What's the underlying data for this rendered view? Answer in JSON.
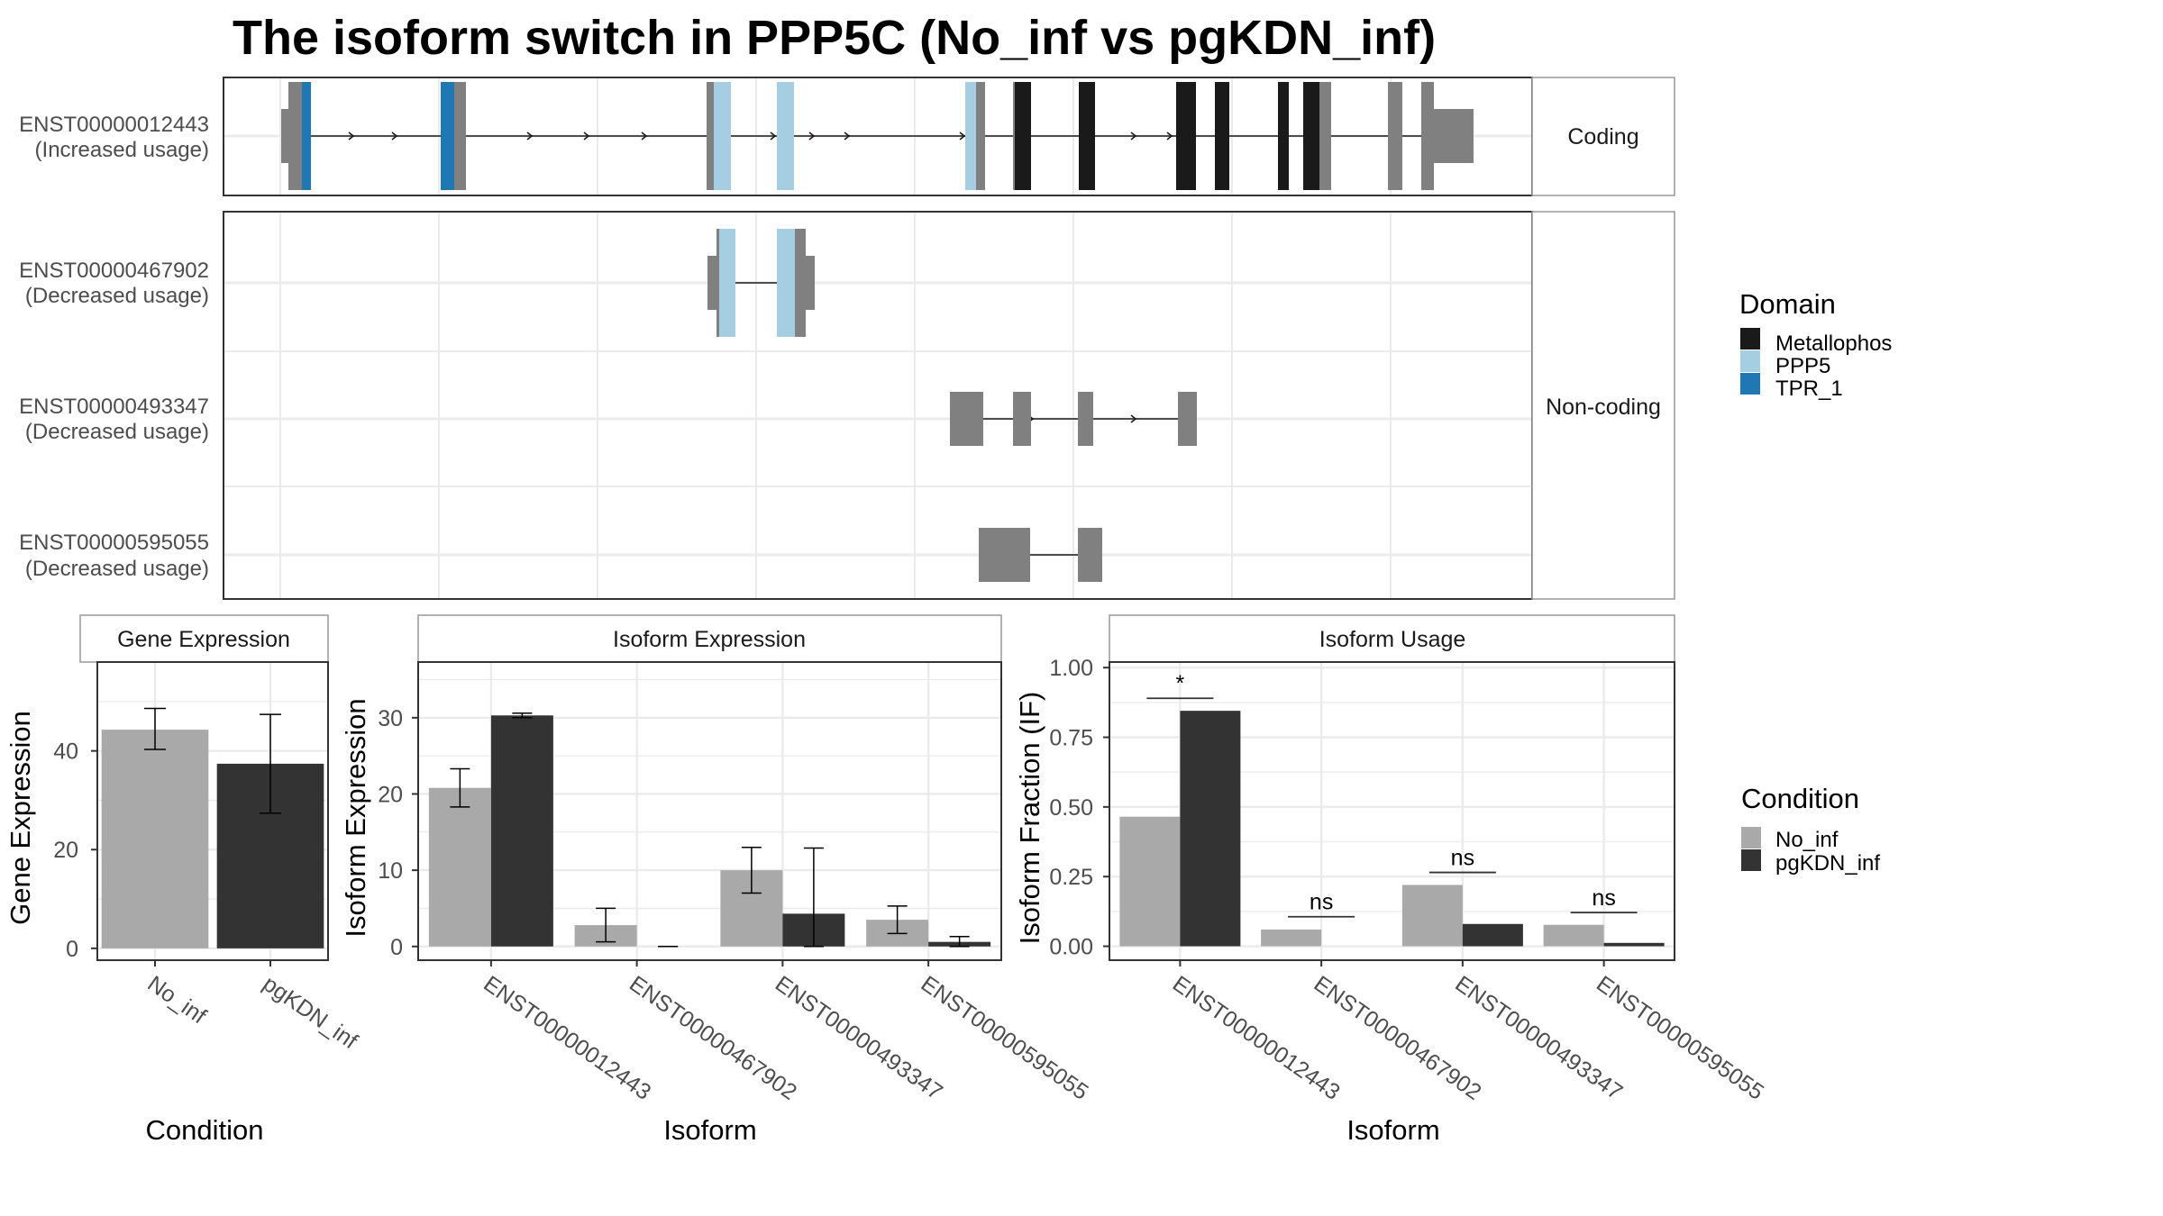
{
  "title": "The isoform switch in PPP5C (No_inf vs pgKDN_inf)",
  "colors": {
    "no_inf": "#a9a9a9",
    "pgkdn_inf": "#333333",
    "utr": "#808080",
    "metallophos": "#1a1a1a",
    "ppp5": "#a6cee3",
    "tpr_1": "#1f78b4"
  },
  "structure_panel": {
    "facets": [
      {
        "label": "Coding",
        "isoforms": [
          0
        ]
      },
      {
        "label": "Non-coding",
        "isoforms": [
          1,
          2,
          3
        ]
      }
    ],
    "isoforms": [
      {
        "id": "ENST00000012443",
        "usage": "(Increased usage)",
        "type": "Coding"
      },
      {
        "id": "ENST00000467902",
        "usage": "(Decreased usage)",
        "type": "Non-coding"
      },
      {
        "id": "ENST00000493347",
        "usage": "(Decreased usage)",
        "type": "Non-coding"
      },
      {
        "id": "ENST00000595055",
        "usage": "(Decreased usage)",
        "type": "Non-coding"
      }
    ]
  },
  "legends": {
    "domain": {
      "title": "Domain",
      "items": [
        {
          "label": "Metallophos",
          "color": "#1a1a1a"
        },
        {
          "label": "PPP5",
          "color": "#a6cee3"
        },
        {
          "label": "TPR_1",
          "color": "#1f78b4"
        }
      ]
    },
    "condition": {
      "title": "Condition",
      "items": [
        {
          "label": "No_inf",
          "color": "#a9a9a9"
        },
        {
          "label": "pgKDN_inf",
          "color": "#333333"
        }
      ]
    }
  },
  "chart_data": [
    {
      "type": "bar",
      "title": "Gene Expression",
      "xlabel": "Condition",
      "ylabel": "Gene Expression",
      "categories": [
        "No_inf",
        "pgKDN_inf"
      ],
      "values": [
        44.3,
        37.4
      ],
      "errors": [
        [
          40.3,
          48.6
        ],
        [
          27.4,
          47.4
        ]
      ],
      "yticks": [
        0,
        20,
        40
      ],
      "ylim": [
        -2.4,
        58
      ],
      "grid": true
    },
    {
      "type": "bar",
      "title": "Isoform Expression",
      "xlabel": "Isoform",
      "ylabel": "Isoform Expression",
      "categories": [
        "ENST00000012443",
        "ENST00000467902",
        "ENST00000493347",
        "ENST00000595055"
      ],
      "series": [
        {
          "name": "No_inf",
          "values": [
            20.8,
            2.8,
            10.0,
            3.5
          ],
          "errors": [
            [
              18.3,
              23.3
            ],
            [
              0.6,
              5.0
            ],
            [
              7.0,
              13.0
            ],
            [
              1.7,
              5.3
            ]
          ]
        },
        {
          "name": "pgKDN_inf",
          "values": [
            30.3,
            0.0,
            4.3,
            0.6
          ],
          "errors": [
            [
              30.0,
              30.6
            ],
            [
              0.0,
              0.0
            ],
            [
              0.0,
              12.9
            ],
            [
              0.0,
              1.3
            ]
          ]
        }
      ],
      "yticks": [
        0,
        10,
        20,
        30
      ],
      "ylim": [
        -1.8,
        37.3
      ],
      "grid": true
    },
    {
      "type": "bar",
      "title": "Isoform Usage",
      "xlabel": "Isoform",
      "ylabel": "Isoform Fraction (IF)",
      "categories": [
        "ENST00000012443",
        "ENST00000467902",
        "ENST00000493347",
        "ENST00000595055"
      ],
      "series": [
        {
          "name": "No_inf",
          "values": [
            0.465,
            0.06,
            0.22,
            0.077
          ]
        },
        {
          "name": "pgKDN_inf",
          "values": [
            0.845,
            0.0,
            0.08,
            0.012
          ]
        }
      ],
      "significance": [
        {
          "label": "*",
          "y": 0.89
        },
        {
          "label": "ns",
          "y": 0.106
        },
        {
          "label": "ns",
          "y": 0.265
        },
        {
          "label": "ns",
          "y": 0.121
        }
      ],
      "yticks": [
        "0.00",
        "0.25",
        "0.50",
        "0.75",
        "1.00"
      ],
      "ylim": [
        -0.05,
        1.02
      ],
      "grid": true
    }
  ]
}
